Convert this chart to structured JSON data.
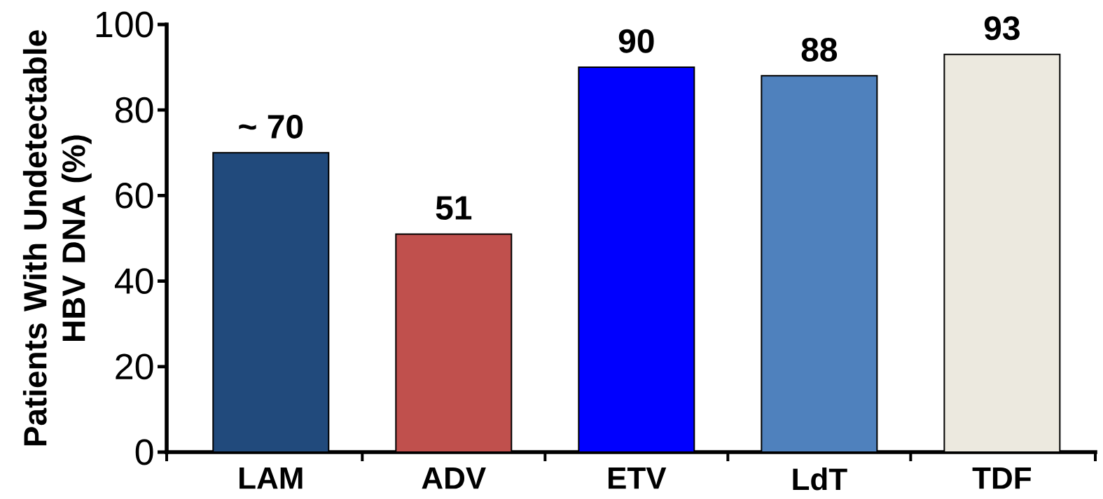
{
  "chart_data": {
    "type": "bar",
    "ylabel": "Patients With Undetectable HBV DNA (%)",
    "categories": [
      "LAM",
      "ADV",
      "ETV",
      "LdT",
      "TDF"
    ],
    "values": [
      70,
      51,
      90,
      88,
      93
    ],
    "value_labels": [
      "~ 70",
      "51",
      "90",
      "88",
      "93"
    ],
    "colors": [
      "#214a7c",
      "#c0504d",
      "#0000ff",
      "#4f81bd",
      "#ece9df"
    ],
    "ylim": [
      0,
      100
    ],
    "yticks": [
      0,
      20,
      40,
      60,
      80,
      100
    ]
  }
}
